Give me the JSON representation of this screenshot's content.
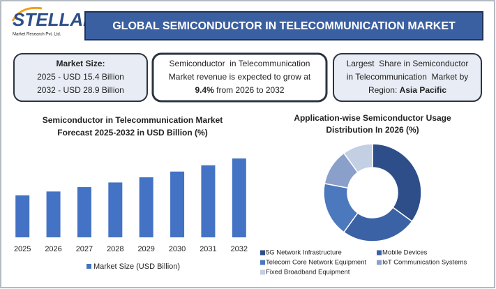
{
  "header": {
    "logo": "STELLAR",
    "logo_sub": "Market Research Pvt. Ltd.",
    "title": "GLOBAL SEMICONDUCTOR IN TELECOMMUNICATION MARKET"
  },
  "info_boxes": [
    {
      "lines": [
        [
          {
            "text": "Market Size:",
            "bold": true
          }
        ],
        [
          {
            "text": "2025 - USD 15.4 Billion"
          }
        ],
        [
          {
            "text": "2032 - USD 28.9 Billion"
          }
        ]
      ]
    },
    {
      "lines": [
        [
          {
            "text": "Semiconductor  in Telecommunication"
          }
        ],
        [
          {
            "text": "Market revenue is expected to grow at"
          }
        ],
        [
          {
            "text": "9.4%",
            "bold": true
          },
          {
            "text": " from 2026 to 2032"
          }
        ]
      ]
    },
    {
      "lines": [
        [
          {
            "text": "Largest  Share in Semiconductor"
          }
        ],
        [
          {
            "text": "in Telecommunication  Market by"
          }
        ],
        [
          {
            "text": "Region: "
          },
          {
            "text": "Asia Pacific",
            "bold": true
          }
        ]
      ]
    }
  ],
  "chart_data": [
    {
      "type": "bar",
      "title": [
        "Semiconductor in Telecommunication Market",
        "Forecast 2025-2032 in USD Billion (%)"
      ],
      "categories": [
        "2025",
        "2026",
        "2027",
        "2028",
        "2029",
        "2030",
        "2031",
        "2032"
      ],
      "series": [
        {
          "name": "Market Size (USD Billion)",
          "color": "#4472c4",
          "values": [
            15.4,
            16.8,
            18.4,
            20.1,
            22.0,
            24.1,
            26.4,
            28.9
          ]
        }
      ],
      "legend": "bottom"
    },
    {
      "type": "donut",
      "title": [
        "Application-wise Semiconductor Usage",
        "Distribution In 2026 (%)"
      ],
      "categories": [
        "5G Network Infrastructure",
        "Mobile Devices",
        "Telecom Core Network Equipment",
        "IoT Communication Systems",
        "Fixed Broadband Equipment"
      ],
      "values": [
        35,
        25,
        18,
        12,
        10
      ],
      "colors": [
        "#2e4e8a",
        "#3a62a5",
        "#4c78bd",
        "#8a9fc9",
        "#c3cfe3"
      ],
      "legend": "bottom"
    }
  ]
}
